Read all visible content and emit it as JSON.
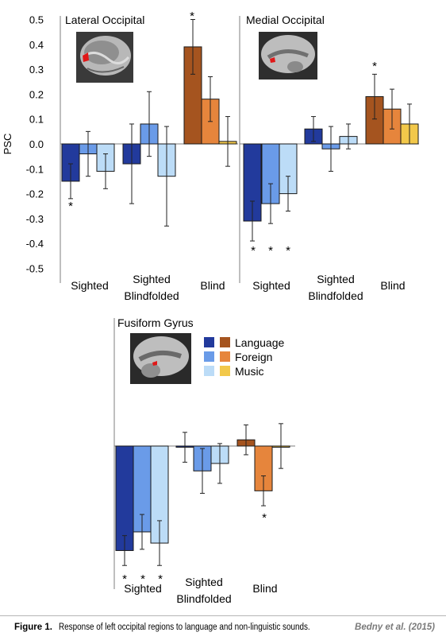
{
  "legend": {
    "entries": [
      {
        "name": "Language",
        "swatches": [
          "#223a9c",
          "#a5541f"
        ]
      },
      {
        "name": "Foreign",
        "swatches": [
          "#6a9be8",
          "#e6853c"
        ]
      },
      {
        "name": "Music",
        "swatches": [
          "#bcdcf7",
          "#f2c84a"
        ]
      }
    ]
  },
  "colors": {
    "sighted": [
      "#223a9c",
      "#6a9be8",
      "#bcdcf7"
    ],
    "blind": [
      "#a5541f",
      "#e6853c",
      "#f2c84a"
    ]
  },
  "chart_data": [
    {
      "type": "bar",
      "title": "Lateral Occipital",
      "ylabel": "PSC",
      "ylim": [
        -0.5,
        0.5
      ],
      "yticks": [
        "0.5",
        "0.4",
        "0.3",
        "0.2",
        "0.1",
        "0.0",
        "-0.1",
        "-0.2",
        "-0.3",
        "-0.4",
        "-0.5"
      ],
      "categories": [
        "Sighted",
        "Sighted Blindfolded",
        "Blind"
      ],
      "series": [
        {
          "name": "Language",
          "values": [
            -0.15,
            -0.08,
            0.39
          ],
          "errors": [
            0.07,
            0.16,
            0.11
          ]
        },
        {
          "name": "Foreign",
          "values": [
            -0.04,
            0.08,
            0.18
          ],
          "errors": [
            0.09,
            0.13,
            0.09
          ]
        },
        {
          "name": "Music",
          "values": [
            -0.11,
            -0.13,
            0.01
          ],
          "errors": [
            0.07,
            0.2,
            0.1
          ]
        }
      ],
      "significance": [
        [
          true,
          false,
          false
        ],
        [
          false,
          false,
          false
        ],
        [
          true,
          false,
          false
        ]
      ]
    },
    {
      "type": "bar",
      "title": "Medial Occipital",
      "ylim": [
        -0.5,
        0.5
      ],
      "categories": [
        "Sighted",
        "Sighted Blindfolded",
        "Blind"
      ],
      "series": [
        {
          "name": "Language",
          "values": [
            -0.31,
            0.06,
            0.19
          ],
          "errors": [
            0.08,
            0.05,
            0.09
          ]
        },
        {
          "name": "Foreign",
          "values": [
            -0.24,
            -0.02,
            0.14
          ],
          "errors": [
            0.08,
            0.09,
            0.08
          ]
        },
        {
          "name": "Music",
          "values": [
            -0.2,
            0.03,
            0.08
          ],
          "errors": [
            0.07,
            0.05,
            0.08
          ]
        }
      ],
      "significance": [
        [
          true,
          false,
          true
        ],
        [
          true,
          false,
          false
        ],
        [
          true,
          false,
          false
        ]
      ]
    },
    {
      "type": "bar",
      "title": "Fusiform Gyrus",
      "categories": [
        "Sighted",
        "Sighted Blindfolded",
        "Blind"
      ],
      "series": [
        {
          "name": "Language",
          "values": [
            -0.42,
            -0.005,
            0.025
          ],
          "errors": [
            0.06,
            0.06,
            0.06
          ]
        },
        {
          "name": "Foreign",
          "values": [
            -0.345,
            -0.1,
            -0.18
          ],
          "errors": [
            0.07,
            0.09,
            0.06
          ]
        },
        {
          "name": "Music",
          "values": [
            -0.39,
            -0.07,
            0.0
          ],
          "errors": [
            0.09,
            0.08,
            0.09
          ]
        }
      ],
      "significance": [
        [
          true,
          false,
          false
        ],
        [
          true,
          false,
          true
        ],
        [
          true,
          false,
          false
        ]
      ]
    }
  ],
  "caption": {
    "label": "Figure 1.",
    "text": "Response of left occipital regions to language and non-linguistic sounds.",
    "credit": "Bedny et al. (2015)"
  }
}
